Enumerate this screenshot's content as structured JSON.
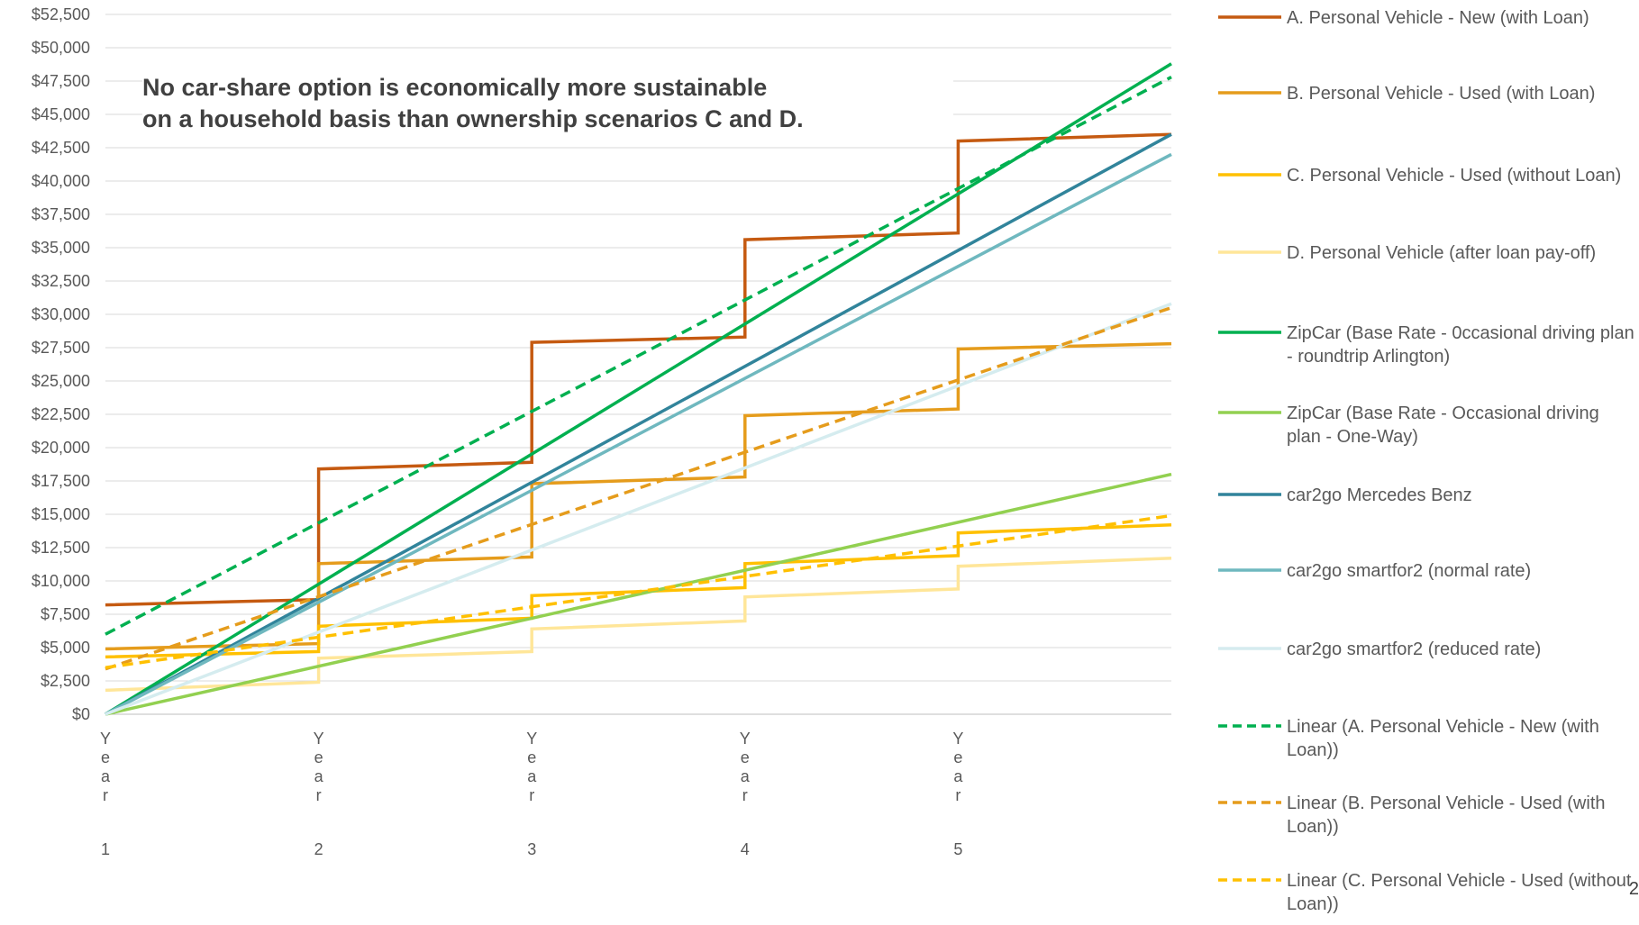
{
  "page_number": "2",
  "annotation": {
    "line1": "No car-share option is economically more sustainable",
    "line2": "on a household basis than ownership scenarios C and D."
  },
  "chart_data": {
    "type": "line",
    "title": "",
    "xlabel": "",
    "ylabel": "",
    "ylim": [
      0,
      52500
    ],
    "y_ticks": [
      "$0",
      "$2,500",
      "$5,000",
      "$7,500",
      "$10,000",
      "$12,500",
      "$15,000",
      "$17,500",
      "$20,000",
      "$22,500",
      "$25,000",
      "$27,500",
      "$30,000",
      "$32,500",
      "$35,000",
      "$37,500",
      "$40,000",
      "$42,500",
      "$45,000",
      "$47,500",
      "$50,000",
      "$52,500"
    ],
    "categories": [
      "Year 1",
      "Year 2",
      "Year 3",
      "Year 4",
      "Year 5"
    ],
    "x_range": [
      1,
      6
    ],
    "grid": "horizontal",
    "legend_position": "right",
    "series": [
      {
        "name": "A. Personal Vehicle - New (with Loan)",
        "color": "#C55A11",
        "dash": false,
        "points": [
          [
            1,
            8200
          ],
          [
            2,
            8600
          ],
          [
            2,
            18400
          ],
          [
            3,
            18900
          ],
          [
            3,
            27900
          ],
          [
            4,
            28300
          ],
          [
            4,
            35600
          ],
          [
            5,
            36100
          ],
          [
            5,
            43000
          ],
          [
            6,
            43500
          ]
        ]
      },
      {
        "name": "B. Personal Vehicle - Used (with Loan)",
        "color": "#E59C1C",
        "dash": false,
        "points": [
          [
            1,
            4900
          ],
          [
            2,
            5300
          ],
          [
            2,
            11300
          ],
          [
            3,
            11800
          ],
          [
            3,
            17300
          ],
          [
            4,
            17800
          ],
          [
            4,
            22400
          ],
          [
            5,
            22900
          ],
          [
            5,
            27400
          ],
          [
            6,
            27800
          ]
        ]
      },
      {
        "name": "C. Personal Vehicle - Used (without Loan)",
        "color": "#FFC000",
        "dash": false,
        "points": [
          [
            1,
            4300
          ],
          [
            2,
            4700
          ],
          [
            2,
            6600
          ],
          [
            3,
            7200
          ],
          [
            3,
            8900
          ],
          [
            4,
            9500
          ],
          [
            4,
            11300
          ],
          [
            5,
            11900
          ],
          [
            5,
            13600
          ],
          [
            6,
            14200
          ]
        ]
      },
      {
        "name": "D. Personal Vehicle (after loan pay-off)",
        "color": "#FFE699",
        "dash": false,
        "points": [
          [
            1,
            1800
          ],
          [
            2,
            2400
          ],
          [
            2,
            4200
          ],
          [
            3,
            4700
          ],
          [
            3,
            6400
          ],
          [
            4,
            7000
          ],
          [
            4,
            8800
          ],
          [
            5,
            9400
          ],
          [
            5,
            11100
          ],
          [
            6,
            11700
          ]
        ]
      },
      {
        "name": "ZipCar (Base Rate - 0ccasional driving plan - roundtrip Arlington)",
        "color": "#00B050",
        "dash": false,
        "points": [
          [
            1,
            0
          ],
          [
            6,
            48800
          ]
        ]
      },
      {
        "name": "ZipCar (Base Rate - Occasional driving plan - One-Way)",
        "color": "#92D050",
        "dash": false,
        "points": [
          [
            1,
            0
          ],
          [
            6,
            18000
          ]
        ]
      },
      {
        "name": "car2go Mercedes Benz",
        "color": "#31849B",
        "dash": false,
        "points": [
          [
            1,
            0
          ],
          [
            6,
            43500
          ]
        ]
      },
      {
        "name": "car2go smartfor2 (normal  rate)",
        "color": "#6FB8BF",
        "dash": false,
        "points": [
          [
            1,
            0
          ],
          [
            6,
            42000
          ]
        ]
      },
      {
        "name": "car2go smartfor2 (reduced rate)",
        "color": "#D5ECEF",
        "dash": false,
        "points": [
          [
            1,
            0
          ],
          [
            6,
            30800
          ]
        ]
      },
      {
        "name": "Linear (A. Personal Vehicle - New (with Loan))",
        "color": "#00B050",
        "dash": true,
        "points": [
          [
            1,
            6000
          ],
          [
            6,
            47800
          ]
        ]
      },
      {
        "name": "Linear (B. Personal Vehicle - Used (with Loan))",
        "color": "#E59C1C",
        "dash": true,
        "points": [
          [
            1,
            3400
          ],
          [
            6,
            30500
          ]
        ]
      },
      {
        "name": "Linear (C. Personal Vehicle - Used (without Loan))",
        "color": "#FFC000",
        "dash": true,
        "points": [
          [
            1,
            3500
          ],
          [
            6,
            14900
          ]
        ]
      }
    ]
  }
}
